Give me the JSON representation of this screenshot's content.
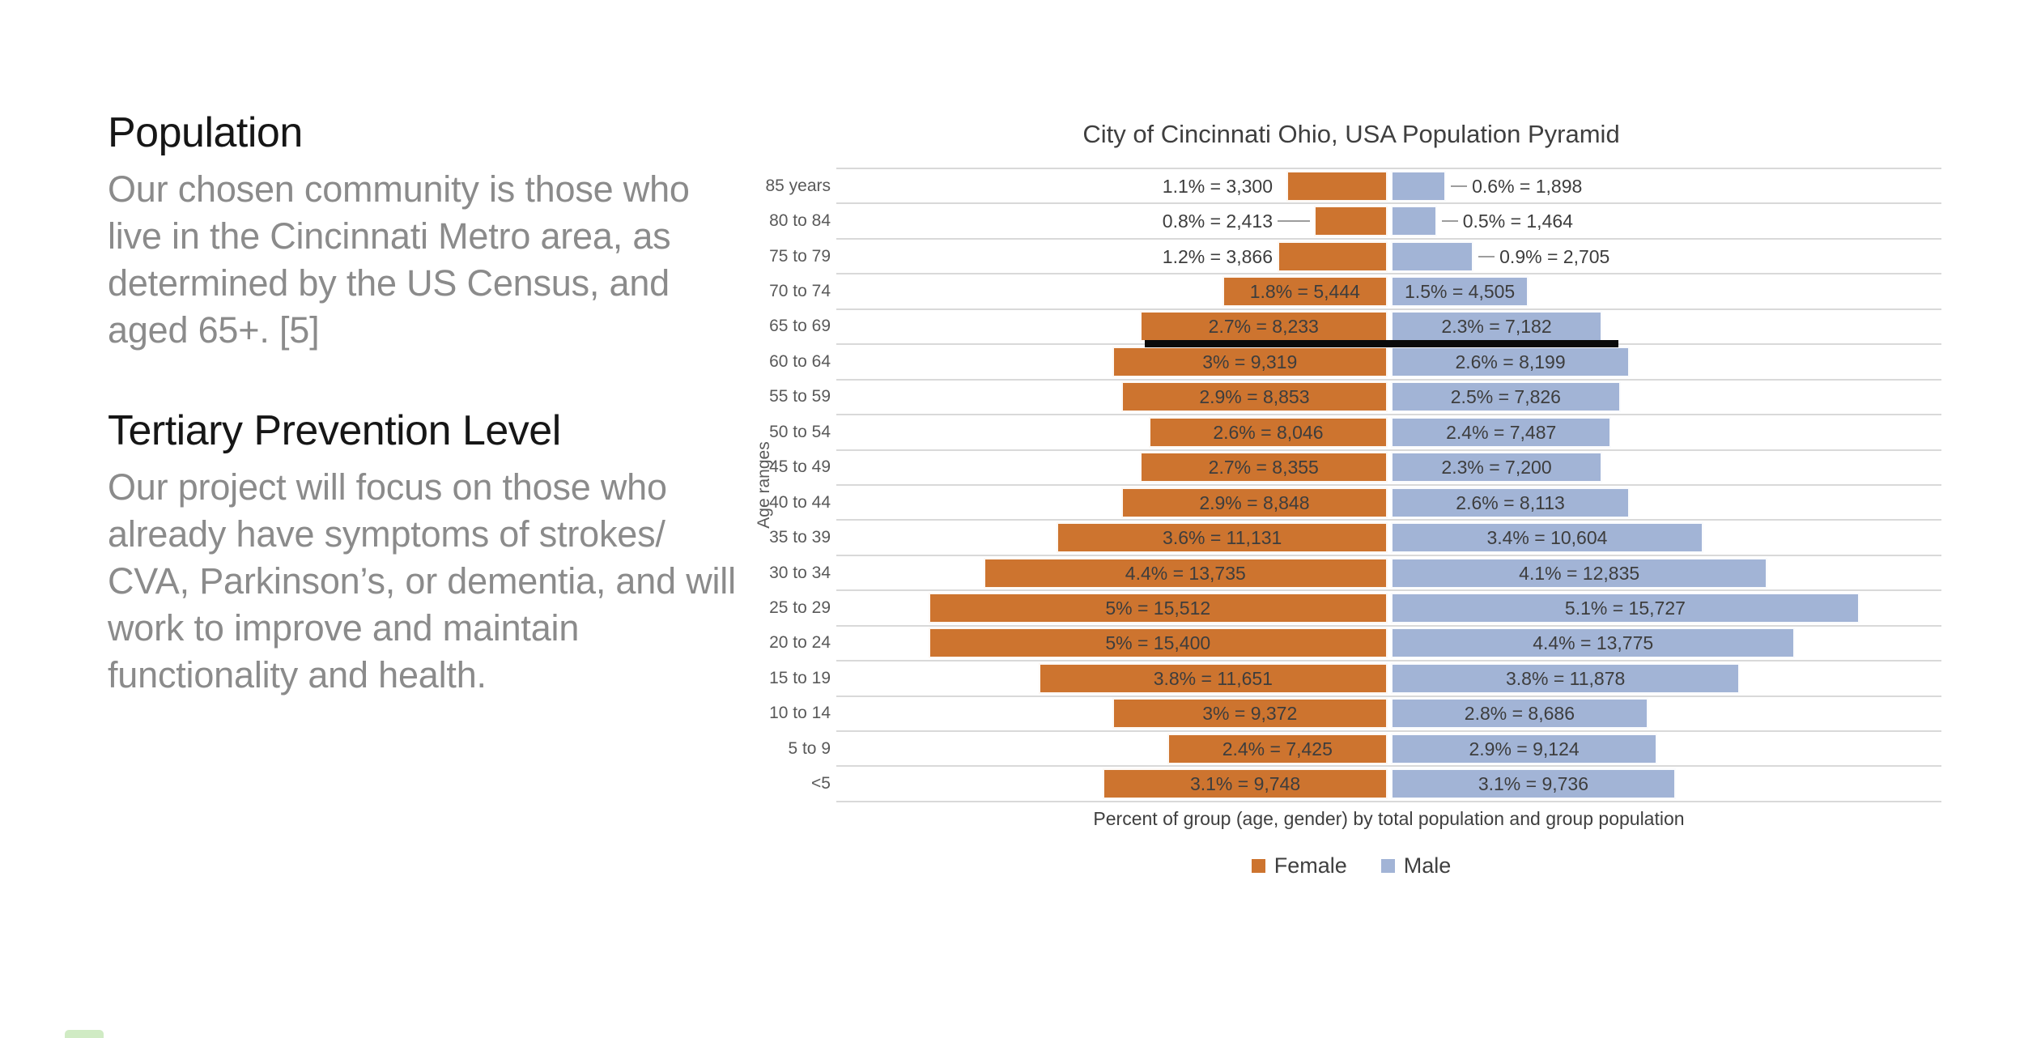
{
  "page": {
    "background": "#ffffff"
  },
  "left_panel": {
    "sections": [
      {
        "heading": "Population",
        "body": "Our chosen community is those who live in the Cincinnati Metro area, as determined by the US Census, and aged 65+. [5]"
      },
      {
        "heading": "Tertiary Prevention Level",
        "body": "Our project will focus on those who already have symptoms of strokes/ CVA, Parkinson’s, or dementia, and will work to improve and maintain functionality and health."
      }
    ]
  },
  "chart_data": {
    "type": "bar",
    "subtype": "population_pyramid",
    "title": "City of Cincinnati Ohio, USA Population Pyramid",
    "ylabel": "Age ranges",
    "xlabel": "Percent of group (age, gender) by total population and group population",
    "axis": {
      "percent_max_each_side": 6,
      "gridlines": true,
      "grid_color": "#d9d9d9"
    },
    "legend": {
      "position": "bottom",
      "entries": [
        {
          "label": "Female",
          "color": "#CD742F"
        },
        {
          "label": "Male",
          "color": "#A2B4D6"
        }
      ]
    },
    "categories": [
      "85 years",
      "80 to 84",
      "75 to 79",
      "70 to 74",
      "65 to 69",
      "60 to 64",
      "55 to 59",
      "50 to 54",
      "45 to 49",
      "40 to 44",
      "35 to 39",
      "30 to 34",
      "25 to 29",
      "20 to 24",
      "15 to 19",
      "10 to 14",
      "5 to 9",
      "<5"
    ],
    "series": [
      {
        "name": "Female",
        "side": "left",
        "color": "#CD742F",
        "percents": [
          1.1,
          0.8,
          1.2,
          1.8,
          2.7,
          3.0,
          2.9,
          2.6,
          2.7,
          2.9,
          3.6,
          4.4,
          5.0,
          5.0,
          3.8,
          3.0,
          2.4,
          3.1
        ],
        "counts": [
          3300,
          2413,
          3866,
          5444,
          8233,
          9319,
          8853,
          8046,
          8355,
          8848,
          11131,
          13735,
          15512,
          15400,
          11651,
          9372,
          7425,
          9748
        ],
        "labels": [
          "1.1% = 3,300",
          "0.8% = 2,413",
          "1.2% = 3,866",
          "1.8% = 5,444",
          "2.7% = 8,233",
          "3% = 9,319",
          "2.9% = 8,853",
          "2.6% = 8,046",
          "2.7% = 8,355",
          "2.9% = 8,848",
          "3.6% = 11,131",
          "4.4% = 13,735",
          "5% = 15,512",
          "5% = 15,400",
          "3.8% = 11,651",
          "3% = 9,372",
          "2.4% = 7,425",
          "3.1% = 9,748"
        ]
      },
      {
        "name": "Male",
        "side": "right",
        "color": "#A2B4D6",
        "percents": [
          0.6,
          0.5,
          0.9,
          1.5,
          2.3,
          2.6,
          2.5,
          2.4,
          2.3,
          2.6,
          3.4,
          4.1,
          5.1,
          4.4,
          3.8,
          2.8,
          2.9,
          3.1
        ],
        "counts": [
          1898,
          1464,
          2705,
          4505,
          7182,
          8199,
          7826,
          7487,
          7200,
          8113,
          10604,
          12835,
          15727,
          13775,
          11878,
          8686,
          9124,
          9736
        ],
        "labels": [
          "0.6% = 1,898",
          "0.5% = 1,464",
          "0.9% = 2,705",
          "1.5% = 4,505",
          "2.3% = 7,182",
          "2.6% = 8,199",
          "2.5% = 7,826",
          "2.4% = 7,487",
          "2.3% = 7,200",
          "2.6% = 8,113",
          "3.4% = 10,604",
          "4.1% = 12,835",
          "5.1% = 15,727",
          "4.4% = 13,775",
          "3.8% = 11,878",
          "2.8% = 8,686",
          "2.9% = 9,124",
          "3.1% = 9,736"
        ]
      }
    ],
    "labels_outside_row_count": 3,
    "annotation": {
      "type": "horizontal_line",
      "color": "#0a0a0a",
      "below_category": "65 to 69",
      "description": "thick black line drawn under the 65 to 69 bars marking the aged 65+ group"
    }
  }
}
